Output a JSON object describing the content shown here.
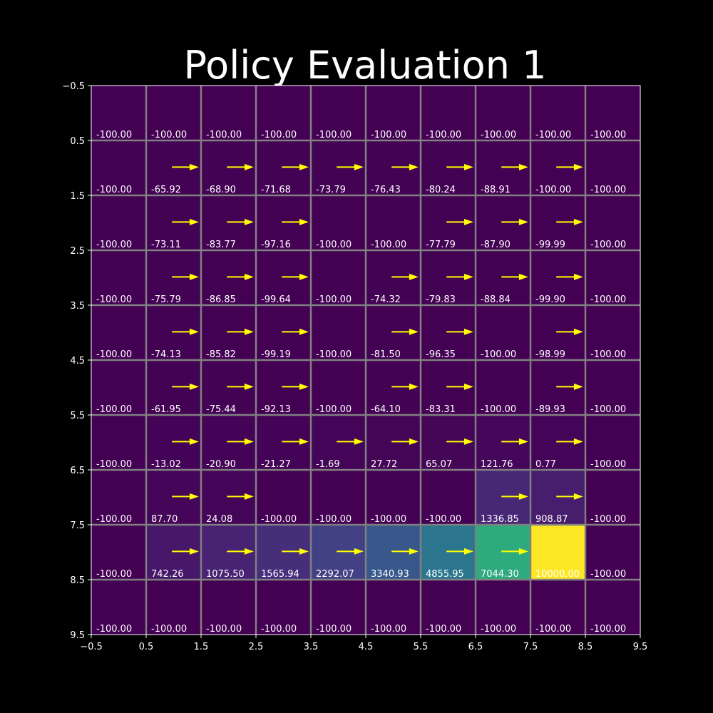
{
  "chart_data": {
    "type": "heatmap",
    "title": "Policy Evaluation 1",
    "xlabel": "",
    "ylabel": "",
    "xlim": [
      -0.5,
      9.5
    ],
    "ylim": [
      9.5,
      -0.5
    ],
    "x_ticks": [
      "−0.5",
      "0.5",
      "1.5",
      "2.5",
      "3.5",
      "4.5",
      "5.5",
      "6.5",
      "7.5",
      "8.5",
      "9.5"
    ],
    "y_ticks": [
      "−0.5",
      "0.5",
      "1.5",
      "2.5",
      "3.5",
      "4.5",
      "5.5",
      "6.5",
      "7.5",
      "8.5",
      "9.5"
    ],
    "colormap": "viridis",
    "value_range": [
      -100,
      10000
    ],
    "background_color": "#000000",
    "grid_color": "#808080",
    "arrow_color": "#ffff00",
    "values": [
      [
        -100.0,
        -100.0,
        -100.0,
        -100.0,
        -100.0,
        -100.0,
        -100.0,
        -100.0,
        -100.0,
        -100.0
      ],
      [
        -100.0,
        -65.92,
        -68.9,
        -71.68,
        -73.79,
        -76.43,
        -80.24,
        -88.91,
        -100.0,
        -100.0
      ],
      [
        -100.0,
        -73.11,
        -83.77,
        -97.16,
        -100.0,
        -100.0,
        -77.79,
        -87.9,
        -99.99,
        -100.0
      ],
      [
        -100.0,
        -75.79,
        -86.85,
        -99.64,
        -100.0,
        -74.32,
        -79.83,
        -88.84,
        -99.9,
        -100.0
      ],
      [
        -100.0,
        -74.13,
        -85.82,
        -99.19,
        -100.0,
        -81.5,
        -96.35,
        -100.0,
        -98.99,
        -100.0
      ],
      [
        -100.0,
        -61.95,
        -75.44,
        -92.13,
        -100.0,
        -64.1,
        -83.31,
        -100.0,
        -89.93,
        -100.0
      ],
      [
        -100.0,
        -13.02,
        -20.9,
        -21.27,
        -1.69,
        27.72,
        65.07,
        121.76,
        0.77,
        -100.0
      ],
      [
        -100.0,
        87.7,
        24.08,
        -100.0,
        -100.0,
        -100.0,
        -100.0,
        1336.85,
        908.87,
        -100.0
      ],
      [
        -100.0,
        742.26,
        1075.5,
        1565.94,
        2292.07,
        3340.93,
        4855.95,
        7044.3,
        10000.0,
        -100.0
      ],
      [
        -100.0,
        -100.0,
        -100.0,
        -100.0,
        -100.0,
        -100.0,
        -100.0,
        -100.0,
        -100.0,
        -100.0
      ]
    ],
    "labels": [
      [
        "-100.00",
        "-100.00",
        "-100.00",
        "-100.00",
        "-100.00",
        "-100.00",
        "-100.00",
        "-100.00",
        "-100.00",
        "-100.00"
      ],
      [
        "-100.00",
        "-65.92",
        "-68.90",
        "-71.68",
        "-73.79",
        "-76.43",
        "-80.24",
        "-88.91",
        "-100.00",
        "-100.00"
      ],
      [
        "-100.00",
        "-73.11",
        "-83.77",
        "-97.16",
        "-100.00",
        "-100.00",
        "-77.79",
        "-87.90",
        "-99.99",
        "-100.00"
      ],
      [
        "-100.00",
        "-75.79",
        "-86.85",
        "-99.64",
        "-100.00",
        "-74.32",
        "-79.83",
        "-88.84",
        "-99.90",
        "-100.00"
      ],
      [
        "-100.00",
        "-74.13",
        "-85.82",
        "-99.19",
        "-100.00",
        "-81.50",
        "-96.35",
        "-100.00",
        "-98.99",
        "-100.00"
      ],
      [
        "-100.00",
        "-61.95",
        "-75.44",
        "-92.13",
        "-100.00",
        "-64.10",
        "-83.31",
        "-100.00",
        "-89.93",
        "-100.00"
      ],
      [
        "-100.00",
        "-13.02",
        "-20.90",
        "-21.27",
        "-1.69",
        "27.72",
        "65.07",
        "121.76",
        "0.77",
        "-100.00"
      ],
      [
        "-100.00",
        "87.70",
        "24.08",
        "-100.00",
        "-100.00",
        "-100.00",
        "-100.00",
        "1336.85",
        "908.87",
        "-100.00"
      ],
      [
        "-100.00",
        "742.26",
        "1075.50",
        "1565.94",
        "2292.07",
        "3340.93",
        "4855.95",
        "7044.30",
        "10000.00",
        "-100.00"
      ],
      [
        "-100.00",
        "-100.00",
        "-100.00",
        "-100.00",
        "-100.00",
        "-100.00",
        "-100.00",
        "-100.00",
        "-100.00",
        "-100.00"
      ]
    ],
    "arrows": [
      [
        0,
        0,
        0,
        0,
        0,
        0,
        0,
        0,
        0,
        0
      ],
      [
        0,
        1,
        1,
        1,
        1,
        1,
        1,
        1,
        1,
        0
      ],
      [
        0,
        1,
        1,
        1,
        0,
        0,
        1,
        1,
        1,
        0
      ],
      [
        0,
        1,
        1,
        1,
        0,
        1,
        1,
        1,
        1,
        0
      ],
      [
        0,
        1,
        1,
        1,
        0,
        1,
        1,
        0,
        1,
        0
      ],
      [
        0,
        1,
        1,
        1,
        0,
        1,
        1,
        0,
        1,
        0
      ],
      [
        0,
        1,
        1,
        1,
        1,
        1,
        1,
        1,
        1,
        0
      ],
      [
        0,
        1,
        1,
        0,
        0,
        0,
        0,
        1,
        1,
        0
      ],
      [
        0,
        1,
        1,
        1,
        1,
        1,
        1,
        1,
        0,
        0
      ],
      [
        0,
        0,
        0,
        0,
        0,
        0,
        0,
        0,
        0,
        0
      ]
    ],
    "arrow_direction": "right"
  }
}
